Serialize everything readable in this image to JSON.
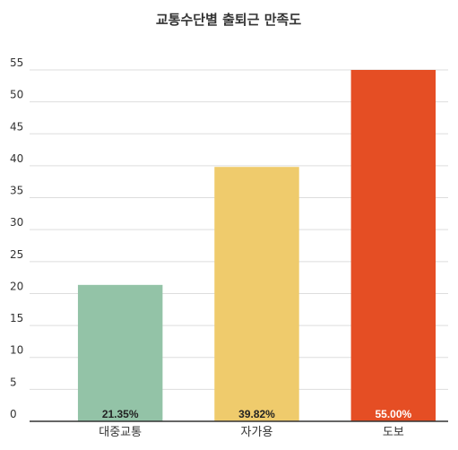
{
  "chart_data": {
    "type": "bar",
    "title": "교통수단별 출퇴근 만족도",
    "xlabel": "",
    "ylabel": "",
    "ylim": [
      0,
      55
    ],
    "yticks": [
      0,
      5,
      10,
      15,
      20,
      25,
      30,
      35,
      40,
      45,
      50,
      55
    ],
    "grid": true,
    "legend": "none",
    "categories": [
      "대중교통",
      "자가용",
      "도보"
    ],
    "values": [
      21.35,
      39.82,
      55.0
    ],
    "data_labels": [
      "21.35%",
      "39.82%",
      "55.00%"
    ],
    "colors": [
      "#93c3a7",
      "#efcb6c",
      "#e54e24"
    ],
    "label_colors": [
      "#222222",
      "#222222",
      "#ffffff"
    ]
  }
}
